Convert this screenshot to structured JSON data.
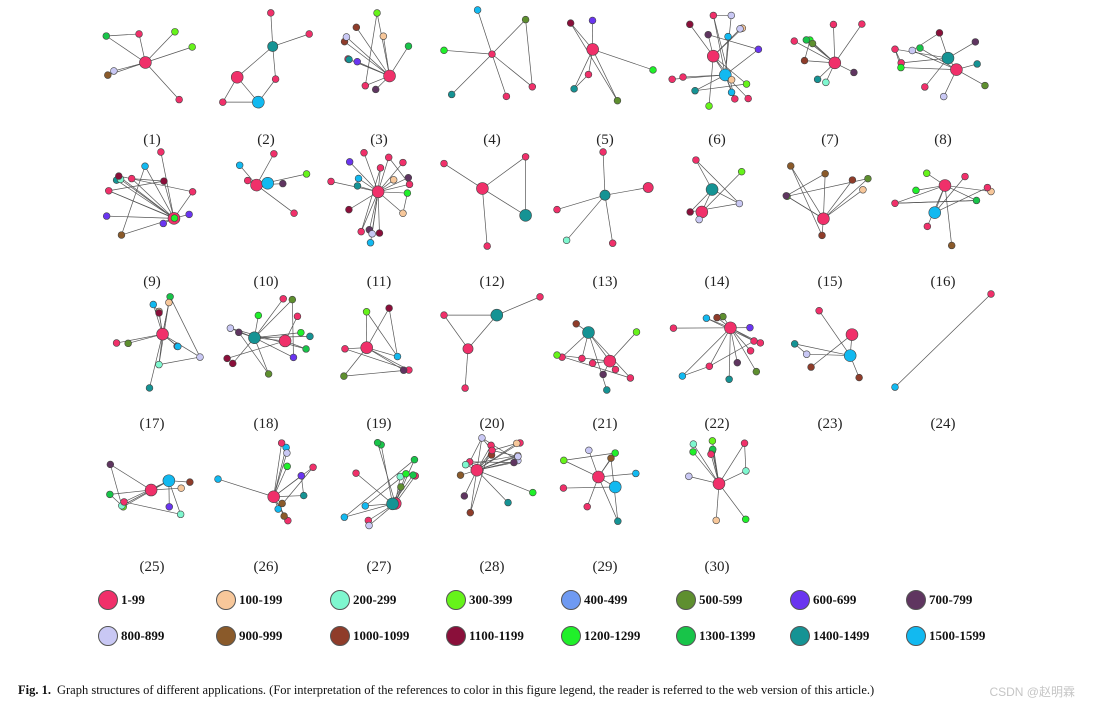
{
  "panel_labels": [
    "(1)",
    "(2)",
    "(3)",
    "(4)",
    "(5)",
    "(6)",
    "(7)",
    "(8)",
    "(9)",
    "(10)",
    "(11)",
    "(12)",
    "(13)",
    "(14)",
    "(15)",
    "(16)",
    "(17)",
    "(18)",
    "(19)",
    "(20)",
    "(21)",
    "(22)",
    "(23)",
    "(24)",
    "(25)",
    "(26)",
    "(27)",
    "(28)",
    "(29)",
    "(30)"
  ],
  "legend": [
    {
      "label": "1-99",
      "color": "#f0306a"
    },
    {
      "label": "100-199",
      "color": "#f7c79a"
    },
    {
      "label": "200-299",
      "color": "#7ff7cf"
    },
    {
      "label": "300-399",
      "color": "#66f31a"
    },
    {
      "label": "400-499",
      "color": "#6f9af2"
    },
    {
      "label": "500-599",
      "color": "#5e8f2f"
    },
    {
      "label": "600-699",
      "color": "#6a35f0"
    },
    {
      "label": "700-799",
      "color": "#5f3560"
    },
    {
      "label": "800-899",
      "color": "#c9c8f4"
    },
    {
      "label": "900-999",
      "color": "#8a5a2a"
    },
    {
      "label": "1000-1099",
      "color": "#8f3c2a"
    },
    {
      "label": "1100-1199",
      "color": "#8a0f3a"
    },
    {
      "label": "1200-1299",
      "color": "#20f02a"
    },
    {
      "label": "1300-1399",
      "color": "#18c449"
    },
    {
      "label": "1400-1499",
      "color": "#159394"
    },
    {
      "label": "1500-1599",
      "color": "#12b9f0"
    }
  ],
  "caption": {
    "prefix": "Fig. 1.",
    "text": "Graph structures of different applications. (For interpretation of the references to color in this figure legend, the reader is referred to the web version of this article.)"
  },
  "watermark": "CSDN @赵明霖"
}
